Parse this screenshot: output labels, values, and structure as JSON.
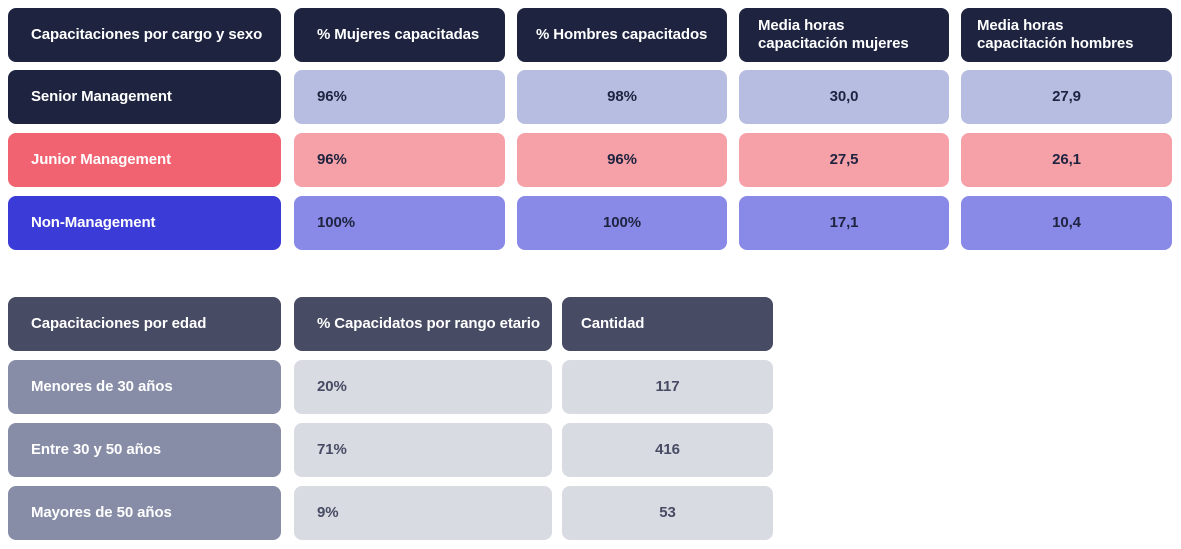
{
  "table1": {
    "headers": [
      "Capacitaciones por cargo y sexo",
      "% Mujeres capacitadas",
      "% Hombres capacitados",
      "Media horas capacitación mujeres",
      "Media horas capacitación hombres"
    ],
    "rows": [
      {
        "label": "Senior Management",
        "values": [
          "96%",
          "98%",
          "30,0",
          "27,9"
        ],
        "color": "#1e2440"
      },
      {
        "label": "Junior Management",
        "values": [
          "96%",
          "96%",
          "27,5",
          "26,1"
        ],
        "color": "#f26371"
      },
      {
        "label": "Non-Management",
        "values": [
          "100%",
          "100%",
          "17,1",
          "10,4"
        ],
        "color": "#3b3bd8"
      }
    ]
  },
  "table2": {
    "headers": [
      "Capacitaciones por edad",
      "% Capacidatos por rango etario",
      "Cantidad"
    ],
    "rows": [
      {
        "label": "Menores de 30 años",
        "values": [
          "20%",
          "117"
        ]
      },
      {
        "label": "Entre 30 y 50 años",
        "values": [
          "71%",
          "416"
        ]
      },
      {
        "label": "Mayores de 50 años",
        "values": [
          "9%",
          "53"
        ]
      }
    ],
    "color": "#474b63"
  }
}
